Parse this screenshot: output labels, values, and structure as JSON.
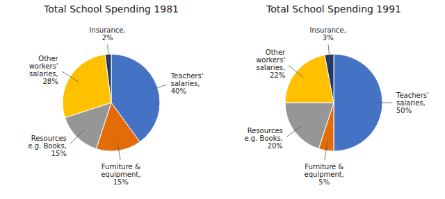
{
  "chart_data": [
    {
      "type": "pie",
      "title": "Total School Spending 1981",
      "categories": [
        "Teachers'\nsalaries,\n40%",
        "Furniture &\nequipment,\n15%",
        "Resources\ne.g. Books,\n15%",
        "Other\nworkers'\nsalaries,\n28%",
        "Insurance,\n2%"
      ],
      "values": [
        40,
        15,
        15,
        28,
        2
      ],
      "colors": [
        "#4472C4",
        "#E36C09",
        "#969696",
        "#FFC000",
        "#1F3864"
      ]
    },
    {
      "type": "pie",
      "title": "Total School Spending 1991",
      "categories": [
        "Teachers'\nsalaries,\n50%",
        "Furniture &\nequipment,\n5%",
        "Resources\ne.g. Books,\n20%",
        "Other\nworkers'\nsalaries,\n22%",
        "Insurance,\n3%"
      ],
      "values": [
        50,
        5,
        20,
        22,
        3
      ],
      "colors": [
        "#4472C4",
        "#E36C09",
        "#969696",
        "#FFC000",
        "#1F3864"
      ]
    }
  ]
}
